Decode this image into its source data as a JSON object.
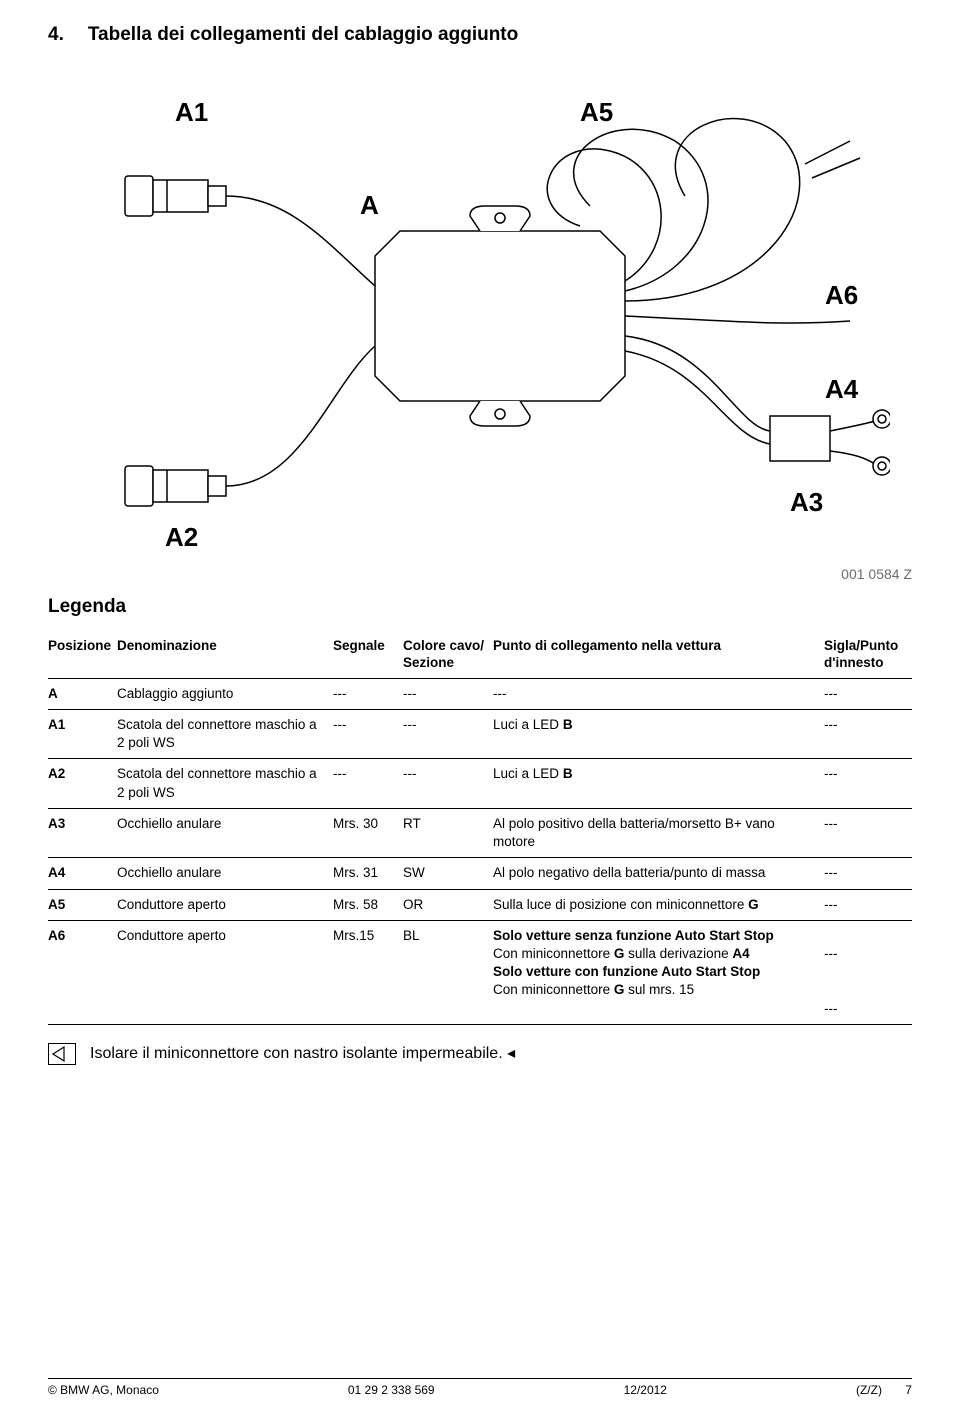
{
  "title": {
    "number": "4.",
    "text": "Tabella dei collegamenti del cablaggio aggiunto"
  },
  "diagram": {
    "labels": {
      "A": "A",
      "A1": "A1",
      "A2": "A2",
      "A3": "A3",
      "A4": "A4",
      "A5": "A5",
      "A6": "A6"
    },
    "stroke_color": "#000000",
    "fill_color": "#ffffff",
    "stroke_width": 1.5
  },
  "figure_code": "001 0584 Z",
  "legend_title": "Legenda",
  "columns": {
    "pos": "Posizione",
    "den": "Denominazione",
    "seg": "Segnale",
    "col": "Colore cavo/\nSezione",
    "pun": "Punto di collegamento nella vettura",
    "sig": "Sigla/Punto d'innesto"
  },
  "rows": [
    {
      "pos": "A",
      "pos_bold": true,
      "den": "Cablaggio aggiunto",
      "seg": "---",
      "col": "---",
      "pun_html": "---",
      "sig_html": "---"
    },
    {
      "pos": "A1",
      "pos_bold": true,
      "den": "Scatola del connettore maschio a 2 poli WS",
      "seg": "---",
      "col": "---",
      "pun_html": "Luci a LED <b>B</b>",
      "sig_html": "---"
    },
    {
      "pos": "A2",
      "pos_bold": true,
      "den": "Scatola del connettore maschio a 2 poli WS",
      "seg": "---",
      "col": "---",
      "pun_html": "Luci a LED <b>B</b>",
      "sig_html": "---"
    },
    {
      "pos": "A3",
      "pos_bold": true,
      "den": "Occhiello anulare",
      "seg": "Mrs. 30",
      "col": "RT",
      "pun_html": "Al polo positivo della batteria/morsetto B+ vano motore",
      "sig_html": "---"
    },
    {
      "pos": "A4",
      "pos_bold": true,
      "den": "Occhiello anulare",
      "seg": "Mrs. 31",
      "col": "SW",
      "pun_html": "Al polo negativo della batteria/punto di massa",
      "sig_html": "---"
    },
    {
      "pos": "A5",
      "pos_bold": true,
      "den": "Conduttore aperto",
      "seg": "Mrs. 58",
      "col": "OR",
      "pun_html": "Sulla luce di posizione con miniconnettore <b>G</b>",
      "sig_html": "---"
    },
    {
      "pos": "A6",
      "pos_bold": true,
      "den": "Conduttore aperto",
      "seg": "Mrs.15",
      "col": "BL",
      "pun_html": "<b>Solo vetture senza funzione Auto Start Stop</b><br>Con miniconnettore <b>G</b> sulla derivazione <b>A4</b><br><b>Solo vetture con funzione Auto Start Stop</b><br>Con miniconnettore <b>G</b> sul mrs. 15",
      "sig_html": "<br>---<br><br><br>---"
    }
  ],
  "note": {
    "text": "Isolare il miniconnettore con nastro isolante impermeabile.",
    "arrow": "◂"
  },
  "footer": {
    "left": "© BMW AG, Monaco",
    "center": "01 29 2 338 569",
    "date": "12/2012",
    "right": "(Z/Z)       7"
  },
  "colors": {
    "text": "#000000",
    "background": "#ffffff",
    "figcode": "#6d6d6d",
    "border": "#000000"
  },
  "fontsize": {
    "title": 19,
    "body": 14,
    "table": 13.5,
    "label": 26,
    "note": 16,
    "footer": 12
  }
}
